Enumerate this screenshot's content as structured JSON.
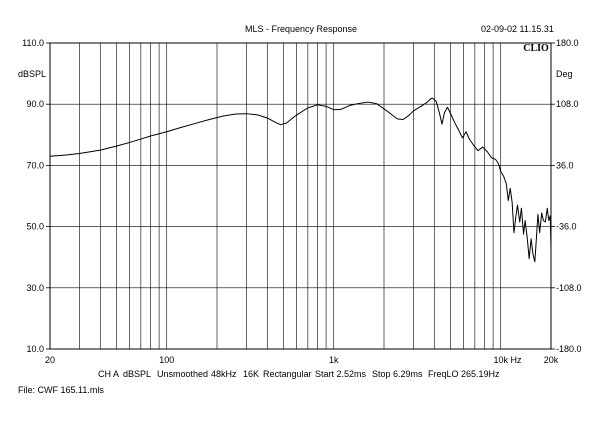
{
  "header": {
    "title": "MLS - Frequency Response",
    "timestamp": "02-09-02 11.15.31",
    "logo": "CLIO"
  },
  "footer": {
    "params": [
      "CH A",
      "dBSPL",
      "Unsmoothed",
      "48kHz",
      "16K",
      "Rectangular",
      "Start 2.52ms",
      "Stop 6.29ms",
      "FreqLO 265.19Hz"
    ],
    "file": "File: CWF 165.11.mls"
  },
  "chart_data": {
    "type": "line",
    "title": "MLS - Frequency Response",
    "xlabel": "Hz",
    "ylabel": "dBSPL",
    "y2label": "Deg",
    "x_scale": "log",
    "xlim": [
      20,
      20000
    ],
    "ylim": [
      10,
      110
    ],
    "y2lim": [
      -180,
      180
    ],
    "grid": true,
    "x_ticks": [
      {
        "value": 20,
        "label": "20"
      },
      {
        "value": 100,
        "label": "100"
      },
      {
        "value": 1000,
        "label": "1k"
      },
      {
        "value": 10000,
        "label": "10k"
      },
      {
        "value": 20000,
        "label": "20k"
      }
    ],
    "y_ticks": [
      "10.0",
      "30.0",
      "50.0",
      "70.0",
      "90.0",
      "110.0"
    ],
    "y2_ticks": [
      "-180.0",
      "-108.0",
      "-36.0",
      "36.0",
      "108.0",
      "180.0"
    ],
    "series": [
      {
        "color": "#000000",
        "points": [
          [
            20,
            73.0
          ],
          [
            25,
            73.4
          ],
          [
            30,
            73.9
          ],
          [
            40,
            75.0
          ],
          [
            50,
            76.3
          ],
          [
            60,
            77.5
          ],
          [
            70,
            78.6
          ],
          [
            80,
            79.6
          ],
          [
            100,
            81.0
          ],
          [
            120,
            82.3
          ],
          [
            150,
            83.8
          ],
          [
            180,
            85.0
          ],
          [
            220,
            86.2
          ],
          [
            260,
            86.8
          ],
          [
            300,
            86.9
          ],
          [
            350,
            86.5
          ],
          [
            400,
            85.5
          ],
          [
            450,
            84.0
          ],
          [
            480,
            83.3
          ],
          [
            520,
            83.8
          ],
          [
            600,
            86.5
          ],
          [
            700,
            88.8
          ],
          [
            800,
            89.8
          ],
          [
            900,
            89.3
          ],
          [
            1000,
            88.2
          ],
          [
            1100,
            88.3
          ],
          [
            1250,
            89.6
          ],
          [
            1400,
            90.2
          ],
          [
            1600,
            90.7
          ],
          [
            1800,
            90.2
          ],
          [
            2000,
            88.5
          ],
          [
            2200,
            86.8
          ],
          [
            2400,
            85.2
          ],
          [
            2600,
            85.0
          ],
          [
            2800,
            86.2
          ],
          [
            3000,
            87.8
          ],
          [
            3300,
            89.2
          ],
          [
            3600,
            90.5
          ],
          [
            3800,
            91.7
          ],
          [
            3900,
            92.0
          ],
          [
            4100,
            91.0
          ],
          [
            4300,
            87.0
          ],
          [
            4450,
            83.5
          ],
          [
            4600,
            87.2
          ],
          [
            4800,
            89.0
          ],
          [
            5000,
            87.0
          ],
          [
            5300,
            84.0
          ],
          [
            5600,
            81.5
          ],
          [
            5900,
            79.0
          ],
          [
            6200,
            81.0
          ],
          [
            6500,
            78.5
          ],
          [
            6900,
            76.5
          ],
          [
            7300,
            74.8
          ],
          [
            7800,
            76.0
          ],
          [
            8300,
            74.5
          ],
          [
            8800,
            72.5
          ],
          [
            9300,
            72.0
          ],
          [
            9700,
            70.5
          ],
          [
            10000,
            68.0
          ],
          [
            10400,
            66.5
          ],
          [
            10800,
            64.0
          ],
          [
            11100,
            58.5
          ],
          [
            11400,
            62.5
          ],
          [
            11700,
            58.0
          ],
          [
            12000,
            48.0
          ],
          [
            12300,
            53.0
          ],
          [
            12600,
            57.0
          ],
          [
            13000,
            51.5
          ],
          [
            13300,
            56.0
          ],
          [
            13700,
            47.5
          ],
          [
            14000,
            52.0
          ],
          [
            14400,
            46.5
          ],
          [
            14800,
            39.5
          ],
          [
            15200,
            46.0
          ],
          [
            15600,
            41.0
          ],
          [
            16000,
            38.5
          ],
          [
            16300,
            45.0
          ],
          [
            16700,
            54.0
          ],
          [
            17100,
            48.0
          ],
          [
            17600,
            54.5
          ],
          [
            18000,
            52.0
          ],
          [
            18500,
            51.5
          ],
          [
            19000,
            56.0
          ],
          [
            19400,
            52.0
          ],
          [
            19800,
            53.5
          ],
          [
            20000,
            43.0
          ]
        ]
      }
    ]
  }
}
